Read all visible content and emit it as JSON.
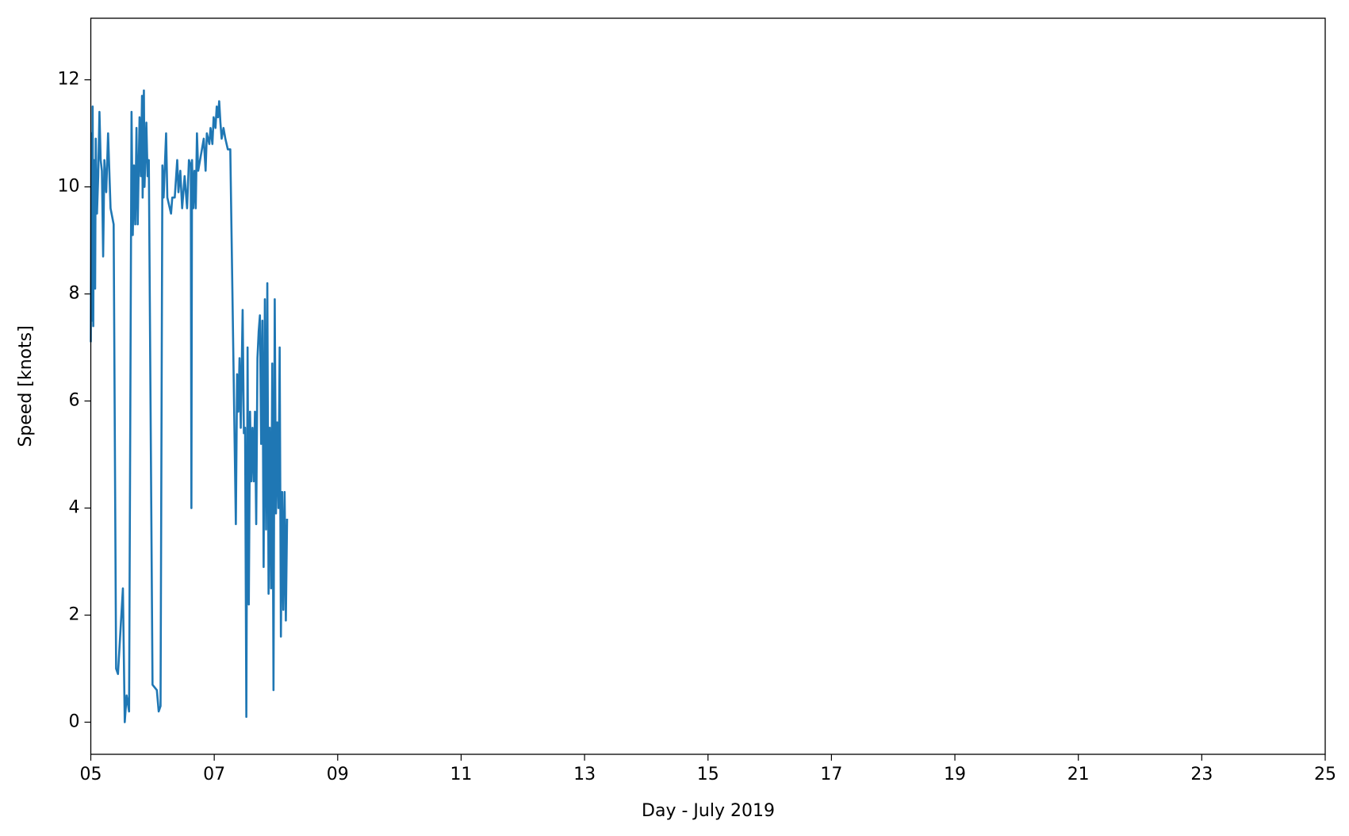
{
  "chart_data": {
    "type": "line",
    "x_label": "Day - July 2019",
    "y_label": "Speed [knots]",
    "x": [
      5.0,
      5.01,
      5.02,
      5.03,
      5.04,
      5.05,
      5.07,
      5.08,
      5.1,
      5.12,
      5.14,
      5.16,
      5.18,
      5.2,
      5.22,
      5.25,
      5.28,
      5.32,
      5.37,
      5.41,
      5.44,
      5.52,
      5.55,
      5.58,
      5.62,
      5.66,
      5.68,
      5.7,
      5.72,
      5.74,
      5.76,
      5.79,
      5.81,
      5.83,
      5.84,
      5.86,
      5.87,
      5.9,
      5.92,
      5.94,
      6.0,
      6.07,
      6.1,
      6.13,
      6.16,
      6.18,
      6.2,
      6.22,
      6.24,
      6.3,
      6.32,
      6.36,
      6.4,
      6.42,
      6.45,
      6.48,
      6.52,
      6.56,
      6.59,
      6.62,
      6.63,
      6.64,
      6.66,
      6.68,
      6.7,
      6.72,
      6.74,
      6.8,
      6.83,
      6.86,
      6.88,
      6.92,
      6.94,
      6.97,
      6.99,
      7.02,
      7.04,
      7.06,
      7.08,
      7.1,
      7.12,
      7.15,
      7.18,
      7.22,
      7.26,
      7.35,
      7.37,
      7.39,
      7.41,
      7.43,
      7.46,
      7.48,
      7.5,
      7.52,
      7.54,
      7.56,
      7.58,
      7.6,
      7.62,
      7.64,
      7.66,
      7.68,
      7.7,
      7.72,
      7.74,
      7.76,
      7.78,
      7.8,
      7.82,
      7.84,
      7.86,
      7.88,
      7.9,
      7.92,
      7.94,
      7.96,
      7.98,
      8.0,
      8.02,
      8.04,
      8.06,
      8.08,
      8.1,
      8.12,
      8.14,
      8.16,
      8.18
    ],
    "series": [
      {
        "name": "Speed",
        "color": "#1f77b4",
        "values": [
          7.1,
          11.0,
          7.5,
          11.5,
          7.4,
          10.5,
          8.1,
          10.9,
          9.5,
          10.2,
          11.4,
          10.5,
          10.3,
          8.7,
          10.5,
          9.9,
          11.0,
          9.6,
          9.3,
          1.0,
          0.9,
          2.5,
          0.0,
          0.5,
          0.2,
          11.4,
          9.1,
          10.4,
          9.3,
          11.1,
          9.3,
          11.3,
          10.2,
          11.7,
          9.8,
          11.8,
          10.0,
          11.2,
          10.2,
          10.5,
          0.7,
          0.6,
          0.2,
          0.3,
          10.4,
          9.8,
          10.4,
          11.0,
          9.8,
          9.5,
          9.8,
          9.8,
          10.5,
          9.9,
          10.3,
          9.6,
          10.2,
          9.6,
          10.5,
          10.4,
          4.0,
          10.5,
          9.6,
          10.3,
          9.6,
          11.0,
          10.3,
          10.7,
          10.9,
          10.3,
          11.0,
          10.8,
          11.1,
          10.8,
          11.3,
          11.1,
          11.5,
          11.3,
          11.6,
          11.2,
          10.9,
          11.1,
          10.9,
          10.7,
          10.7,
          3.7,
          6.5,
          5.8,
          6.8,
          5.5,
          7.7,
          5.4,
          5.5,
          0.1,
          7.0,
          2.2,
          5.8,
          4.5,
          5.5,
          4.5,
          5.8,
          3.7,
          6.8,
          7.3,
          7.6,
          5.2,
          7.5,
          2.9,
          7.9,
          3.6,
          8.2,
          2.4,
          5.5,
          2.5,
          6.7,
          0.6,
          7.9,
          3.9,
          5.6,
          4.0,
          7.0,
          1.6,
          4.3,
          2.1,
          4.3,
          1.9,
          3.8
        ]
      }
    ],
    "xlim": [
      5,
      25
    ],
    "xticks": [
      {
        "value": 5,
        "label": "05"
      },
      {
        "value": 7,
        "label": "07"
      },
      {
        "value": 9,
        "label": "09"
      },
      {
        "value": 11,
        "label": "11"
      },
      {
        "value": 13,
        "label": "13"
      },
      {
        "value": 15,
        "label": "15"
      },
      {
        "value": 17,
        "label": "17"
      },
      {
        "value": 19,
        "label": "19"
      },
      {
        "value": 21,
        "label": "21"
      },
      {
        "value": 23,
        "label": "23"
      },
      {
        "value": 25,
        "label": "25"
      }
    ],
    "ylim": [
      -0.6,
      13.15
    ],
    "yticks": [
      0,
      2,
      4,
      6,
      8,
      10,
      12
    ],
    "grid": false
  }
}
